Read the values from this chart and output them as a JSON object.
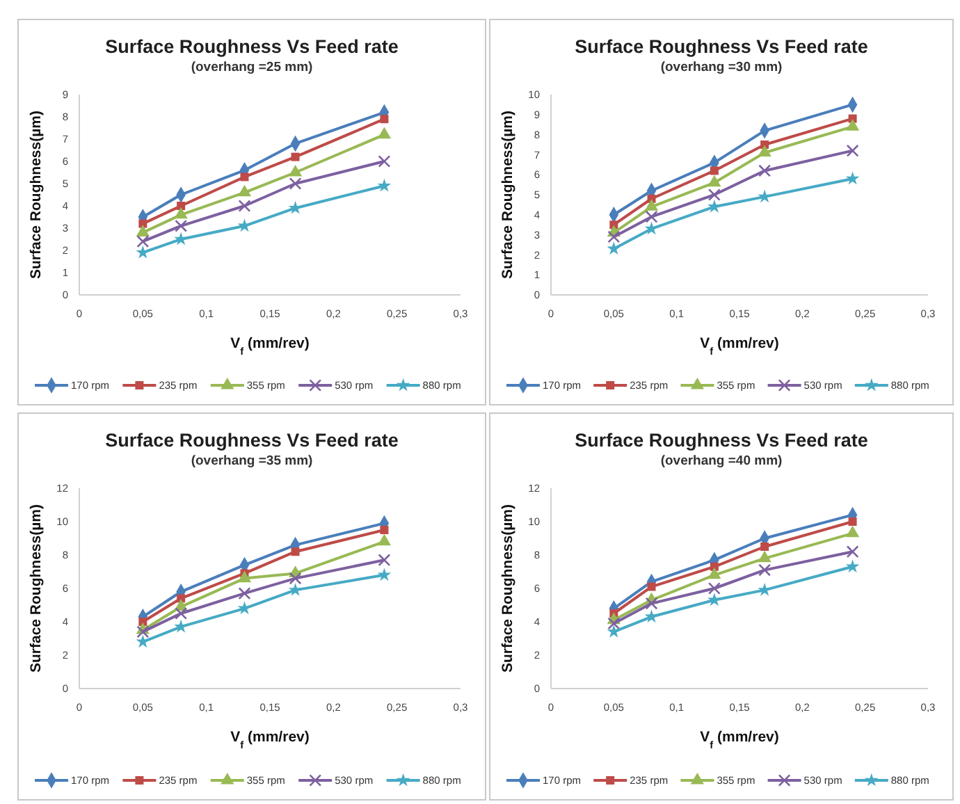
{
  "chart_data": [
    {
      "type": "line",
      "title": "Surface Roughness Vs Feed rate",
      "subtitle": "(overhang =25 mm)",
      "xlabel": "V$_{f}$ (mm/rev)",
      "ylabel": "Surface Roughness(µm)",
      "legend": "bottom",
      "grid": false,
      "xlim": [
        0,
        0.3
      ],
      "xticks": [
        {
          "value": 0,
          "label": "0"
        },
        {
          "value": 0.05,
          "label": "0,05"
        },
        {
          "value": 0.1,
          "label": "0,1"
        },
        {
          "value": 0.15,
          "label": "0,15"
        },
        {
          "value": 0.2,
          "label": "0,2"
        },
        {
          "value": 0.25,
          "label": "0,25"
        },
        {
          "value": 0.3,
          "label": "0,3"
        }
      ],
      "ylim": [
        0,
        9
      ],
      "yticks": [
        0,
        1,
        2,
        3,
        4,
        5,
        6,
        7,
        8,
        9
      ],
      "x": [
        0.05,
        0.08,
        0.13,
        0.17,
        0.24
      ],
      "series": [
        {
          "name": "170 rpm",
          "color": "#4a7ebb",
          "marker": "diamond",
          "values": [
            3.5,
            4.5,
            5.6,
            6.8,
            8.2
          ]
        },
        {
          "name": "235 rpm",
          "color": "#be4b48",
          "marker": "square",
          "values": [
            3.2,
            4.0,
            5.3,
            6.2,
            7.9
          ]
        },
        {
          "name": "355 rpm",
          "color": "#98b954",
          "marker": "triangle",
          "values": [
            2.8,
            3.6,
            4.6,
            5.5,
            7.2
          ]
        },
        {
          "name": "530 rpm",
          "color": "#7d60a0",
          "marker": "cross",
          "values": [
            2.4,
            3.1,
            4.0,
            5.0,
            6.0
          ]
        },
        {
          "name": "880 rpm",
          "color": "#46aac5",
          "marker": "star",
          "values": [
            1.9,
            2.5,
            3.1,
            3.9,
            4.9
          ]
        }
      ]
    },
    {
      "type": "line",
      "title": "Surface Roughness Vs Feed rate",
      "subtitle": "(overhang =30 mm)",
      "xlabel": "V$_{f}$ (mm/rev)",
      "ylabel": "Surface Roughness(µm)",
      "legend": "bottom",
      "grid": false,
      "xlim": [
        0,
        0.3
      ],
      "xticks": [
        {
          "value": 0,
          "label": "0"
        },
        {
          "value": 0.05,
          "label": "0,05"
        },
        {
          "value": 0.1,
          "label": "0,1"
        },
        {
          "value": 0.15,
          "label": "0,15"
        },
        {
          "value": 0.2,
          "label": "0,2"
        },
        {
          "value": 0.25,
          "label": "0,25"
        },
        {
          "value": 0.3,
          "label": "0,3"
        }
      ],
      "ylim": [
        0,
        10
      ],
      "yticks": [
        0,
        1,
        2,
        3,
        4,
        5,
        6,
        7,
        8,
        9,
        10
      ],
      "x": [
        0.05,
        0.08,
        0.13,
        0.17,
        0.24
      ],
      "series": [
        {
          "name": "170 rpm",
          "color": "#4a7ebb",
          "marker": "diamond",
          "values": [
            4.0,
            5.2,
            6.6,
            8.2,
            9.5
          ]
        },
        {
          "name": "235 rpm",
          "color": "#be4b48",
          "marker": "square",
          "values": [
            3.5,
            4.8,
            6.2,
            7.5,
            8.8
          ]
        },
        {
          "name": "355 rpm",
          "color": "#98b954",
          "marker": "triangle",
          "values": [
            3.1,
            4.4,
            5.6,
            7.1,
            8.4
          ]
        },
        {
          "name": "530 rpm",
          "color": "#7d60a0",
          "marker": "cross",
          "values": [
            2.9,
            3.9,
            5.0,
            6.2,
            7.2
          ]
        },
        {
          "name": "880 rpm",
          "color": "#46aac5",
          "marker": "star",
          "values": [
            2.3,
            3.3,
            4.4,
            4.9,
            5.8
          ]
        }
      ]
    },
    {
      "type": "line",
      "title": "Surface Roughness Vs Feed rate",
      "subtitle": "(overhang =35 mm)",
      "xlabel": "V$_{f}$ (mm/rev)",
      "ylabel": "Surface Roughness(µm)",
      "legend": "bottom",
      "grid": false,
      "xlim": [
        0,
        0.3
      ],
      "xticks": [
        {
          "value": 0,
          "label": "0"
        },
        {
          "value": 0.05,
          "label": "0,05"
        },
        {
          "value": 0.1,
          "label": "0,1"
        },
        {
          "value": 0.15,
          "label": "0,15"
        },
        {
          "value": 0.2,
          "label": "0,2"
        },
        {
          "value": 0.25,
          "label": "0,25"
        },
        {
          "value": 0.3,
          "label": "0,3"
        }
      ],
      "ylim": [
        0,
        12
      ],
      "yticks": [
        0,
        2,
        4,
        6,
        8,
        10,
        12
      ],
      "x": [
        0.05,
        0.08,
        0.13,
        0.17,
        0.24
      ],
      "series": [
        {
          "name": "170 rpm",
          "color": "#4a7ebb",
          "marker": "diamond",
          "values": [
            4.3,
            5.8,
            7.4,
            8.6,
            9.9
          ]
        },
        {
          "name": "235 rpm",
          "color": "#be4b48",
          "marker": "square",
          "values": [
            4.0,
            5.4,
            6.9,
            8.2,
            9.5
          ]
        },
        {
          "name": "355 rpm",
          "color": "#98b954",
          "marker": "triangle",
          "values": [
            3.5,
            4.9,
            6.6,
            6.9,
            8.8
          ]
        },
        {
          "name": "530 rpm",
          "color": "#7d60a0",
          "marker": "cross",
          "values": [
            3.4,
            4.5,
            5.7,
            6.6,
            7.7
          ]
        },
        {
          "name": "880 rpm",
          "color": "#46aac5",
          "marker": "star",
          "values": [
            2.8,
            3.7,
            4.8,
            5.9,
            6.8
          ]
        }
      ]
    },
    {
      "type": "line",
      "title": "Surface Roughness Vs Feed rate",
      "subtitle": "(overhang =40 mm)",
      "xlabel": "V$_{f}$ (mm/rev)",
      "ylabel": "Surface Roughness(µm)",
      "legend": "bottom",
      "grid": false,
      "xlim": [
        0,
        0.3
      ],
      "xticks": [
        {
          "value": 0,
          "label": "0"
        },
        {
          "value": 0.05,
          "label": "0,05"
        },
        {
          "value": 0.1,
          "label": "0,1"
        },
        {
          "value": 0.15,
          "label": "0,15"
        },
        {
          "value": 0.2,
          "label": "0,2"
        },
        {
          "value": 0.25,
          "label": "0,25"
        },
        {
          "value": 0.3,
          "label": "0,3"
        }
      ],
      "ylim": [
        0,
        12
      ],
      "yticks": [
        0,
        2,
        4,
        6,
        8,
        10,
        12
      ],
      "x": [
        0.05,
        0.08,
        0.13,
        0.17,
        0.24
      ],
      "series": [
        {
          "name": "170 rpm",
          "color": "#4a7ebb",
          "marker": "diamond",
          "values": [
            4.8,
            6.4,
            7.7,
            9.0,
            10.4
          ]
        },
        {
          "name": "235 rpm",
          "color": "#be4b48",
          "marker": "square",
          "values": [
            4.5,
            6.1,
            7.3,
            8.5,
            10.0
          ]
        },
        {
          "name": "355 rpm",
          "color": "#98b954",
          "marker": "triangle",
          "values": [
            4.1,
            5.3,
            6.8,
            7.8,
            9.3
          ]
        },
        {
          "name": "530 rpm",
          "color": "#7d60a0",
          "marker": "cross",
          "values": [
            3.9,
            5.1,
            6.0,
            7.1,
            8.2
          ]
        },
        {
          "name": "880 rpm",
          "color": "#46aac5",
          "marker": "star",
          "values": [
            3.4,
            4.3,
            5.3,
            5.9,
            7.3
          ]
        }
      ]
    }
  ]
}
